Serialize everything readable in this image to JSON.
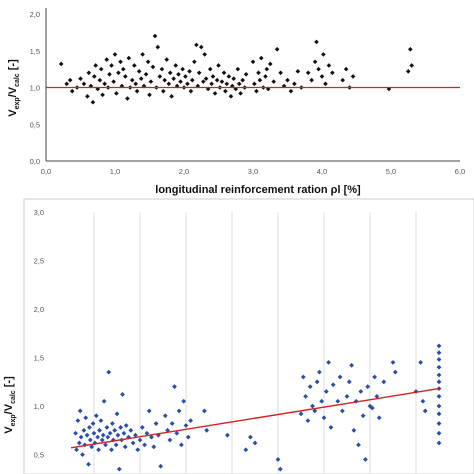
{
  "chart_data": [
    {
      "type": "scatter",
      "xlabel": "longitudinal reinforcement ration ρl [%]",
      "ylabel_main": "V",
      "ylabel_sub1": "exp",
      "ylabel_mid": "/V",
      "ylabel_sub2": "calc",
      "ylabel_tail": " [-]",
      "xlim": [
        0,
        6
      ],
      "ylim": [
        0,
        2
      ],
      "xticks": [
        "0,0",
        "1,0",
        "2,0",
        "3,0",
        "4,0",
        "5,0",
        "6,0"
      ],
      "yticks": [
        "0,0",
        "0,5",
        "1,0",
        "1,5",
        "2,0"
      ],
      "grid": false,
      "colors": {
        "points": "#111111",
        "reference": "#e02020"
      },
      "reference_line": {
        "x": [
          0,
          6
        ],
        "y": [
          1.0,
          1.0
        ]
      },
      "series": [
        {
          "points": [
            [
              0.22,
              1.32
            ],
            [
              0.3,
              1.05
            ],
            [
              0.35,
              1.1
            ],
            [
              0.38,
              0.95
            ],
            [
              0.45,
              1.0
            ],
            [
              0.5,
              1.12
            ],
            [
              0.55,
              1.05
            ],
            [
              0.6,
              0.88
            ],
            [
              0.62,
              1.2
            ],
            [
              0.65,
              1.02
            ],
            [
              0.68,
              0.8
            ],
            [
              0.7,
              1.15
            ],
            [
              0.72,
              1.3
            ],
            [
              0.75,
              0.98
            ],
            [
              0.78,
              1.1
            ],
            [
              0.8,
              1.25
            ],
            [
              0.82,
              0.9
            ],
            [
              0.85,
              1.05
            ],
            [
              0.88,
              1.38
            ],
            [
              0.9,
              1.0
            ],
            [
              0.92,
              1.18
            ],
            [
              0.95,
              1.3
            ],
            [
              0.98,
              1.08
            ],
            [
              1.0,
              1.45
            ],
            [
              1.02,
              0.92
            ],
            [
              1.05,
              1.2
            ],
            [
              1.08,
              1.35
            ],
            [
              1.1,
              1.02
            ],
            [
              1.12,
              1.25
            ],
            [
              1.15,
              1.15
            ],
            [
              1.18,
              0.85
            ],
            [
              1.2,
              1.4
            ],
            [
              1.22,
              1.0
            ],
            [
              1.25,
              1.1
            ],
            [
              1.28,
              1.3
            ],
            [
              1.3,
              1.05
            ],
            [
              1.32,
              0.95
            ],
            [
              1.35,
              1.22
            ],
            [
              1.38,
              1.12
            ],
            [
              1.4,
              1.45
            ],
            [
              1.42,
              1.02
            ],
            [
              1.45,
              1.18
            ],
            [
              1.48,
              1.35
            ],
            [
              1.5,
              0.9
            ],
            [
              1.52,
              1.08
            ],
            [
              1.55,
              1.28
            ],
            [
              1.58,
              1.7
            ],
            [
              1.6,
              1.0
            ],
            [
              1.62,
              1.55
            ],
            [
              1.65,
              1.15
            ],
            [
              1.68,
              1.25
            ],
            [
              1.7,
              0.95
            ],
            [
              1.72,
              1.1
            ],
            [
              1.75,
              1.38
            ],
            [
              1.78,
              1.05
            ],
            [
              1.8,
              1.2
            ],
            [
              1.82,
              0.88
            ],
            [
              1.85,
              1.12
            ],
            [
              1.88,
              1.3
            ],
            [
              1.9,
              1.02
            ],
            [
              1.92,
              1.18
            ],
            [
              1.95,
              1.08
            ],
            [
              1.98,
              1.25
            ],
            [
              2.0,
              1.0
            ],
            [
              2.02,
              1.15
            ],
            [
              2.05,
              1.05
            ],
            [
              2.08,
              1.22
            ],
            [
              2.1,
              0.95
            ],
            [
              2.12,
              1.1
            ],
            [
              2.15,
              1.35
            ],
            [
              2.18,
              1.58
            ],
            [
              2.2,
              1.02
            ],
            [
              2.22,
              1.2
            ],
            [
              2.25,
              1.55
            ],
            [
              2.28,
              1.08
            ],
            [
              2.3,
              1.45
            ],
            [
              2.32,
              1.12
            ],
            [
              2.35,
              0.98
            ],
            [
              2.38,
              1.25
            ],
            [
              2.4,
              1.05
            ],
            [
              2.42,
              1.15
            ],
            [
              2.45,
              0.92
            ],
            [
              2.48,
              1.1
            ],
            [
              2.5,
              1.3
            ],
            [
              2.52,
              1.0
            ],
            [
              2.55,
              1.08
            ],
            [
              2.58,
              1.2
            ],
            [
              2.6,
              0.95
            ],
            [
              2.62,
              1.05
            ],
            [
              2.65,
              1.15
            ],
            [
              2.68,
              0.88
            ],
            [
              2.7,
              1.02
            ],
            [
              2.72,
              1.12
            ],
            [
              2.75,
              0.98
            ],
            [
              2.78,
              1.25
            ],
            [
              2.8,
              1.05
            ],
            [
              2.82,
              0.92
            ],
            [
              2.85,
              1.1
            ],
            [
              2.88,
              1.0
            ],
            [
              2.9,
              1.18
            ],
            [
              3.0,
              1.35
            ],
            [
              3.02,
              1.05
            ],
            [
              3.05,
              0.95
            ],
            [
              3.08,
              1.2
            ],
            [
              3.1,
              1.1
            ],
            [
              3.12,
              1.4
            ],
            [
              3.15,
              1.0
            ],
            [
              3.18,
              1.15
            ],
            [
              3.2,
              1.25
            ],
            [
              3.22,
              0.98
            ],
            [
              3.25,
              1.32
            ],
            [
              3.3,
              1.08
            ],
            [
              3.35,
              1.52
            ],
            [
              3.4,
              1.2
            ],
            [
              3.45,
              1.02
            ],
            [
              3.5,
              1.1
            ],
            [
              3.55,
              0.95
            ],
            [
              3.6,
              1.05
            ],
            [
              3.65,
              1.22
            ],
            [
              3.7,
              1.0
            ],
            [
              3.8,
              1.2
            ],
            [
              3.85,
              1.1
            ],
            [
              3.9,
              1.35
            ],
            [
              3.92,
              1.62
            ],
            [
              3.95,
              1.25
            ],
            [
              4.0,
              1.15
            ],
            [
              4.02,
              1.45
            ],
            [
              4.05,
              1.05
            ],
            [
              4.1,
              1.3
            ],
            [
              4.15,
              1.2
            ],
            [
              4.3,
              1.1
            ],
            [
              4.35,
              1.25
            ],
            [
              4.4,
              1.0
            ],
            [
              4.45,
              1.15
            ],
            [
              4.97,
              0.98
            ],
            [
              5.25,
              1.22
            ],
            [
              5.28,
              1.52
            ],
            [
              5.3,
              1.3
            ]
          ]
        }
      ]
    },
    {
      "type": "scatter",
      "ylabel_main": "V",
      "ylabel_sub1": "exp",
      "ylabel_mid": "/V",
      "ylabel_sub2": "calc",
      "ylabel_tail": " [-]",
      "ylim": [
        0.3,
        3.0
      ],
      "yticks": [
        "0,5",
        "1,0",
        "1,5",
        "2,0",
        "2,5",
        "3,0"
      ],
      "grid": true,
      "colors": {
        "points": "#2a4fa8",
        "trend": "#d42020"
      },
      "trend_line": {
        "x": [
          0.5,
          8.5
        ],
        "y": [
          0.57,
          1.18
        ]
      },
      "series": [
        {
          "points": [
            [
              0.6,
              0.72
            ],
            [
              0.62,
              0.55
            ],
            [
              0.65,
              0.85
            ],
            [
              0.68,
              0.62
            ],
            [
              0.7,
              0.95
            ],
            [
              0.72,
              0.68
            ],
            [
              0.75,
              0.5
            ],
            [
              0.78,
              0.75
            ],
            [
              0.8,
              0.6
            ],
            [
              0.82,
              0.88
            ],
            [
              0.85,
              0.7
            ],
            [
              0.88,
              0.4
            ],
            [
              0.9,
              0.78
            ],
            [
              0.92,
              0.65
            ],
            [
              0.95,
              0.58
            ],
            [
              0.98,
              0.82
            ],
            [
              1.0,
              0.72
            ],
            [
              1.02,
              0.62
            ],
            [
              1.05,
              0.9
            ],
            [
              1.08,
              0.68
            ],
            [
              1.1,
              0.55
            ],
            [
              1.12,
              0.75
            ],
            [
              1.15,
              0.85
            ],
            [
              1.18,
              0.65
            ],
            [
              1.2,
              0.7
            ],
            [
              1.22,
              1.05
            ],
            [
              1.25,
              0.6
            ],
            [
              1.28,
              0.78
            ],
            [
              1.3,
              0.68
            ],
            [
              1.32,
              1.35
            ],
            [
              1.35,
              0.72
            ],
            [
              1.38,
              0.55
            ],
            [
              1.4,
              0.82
            ],
            [
              1.42,
              0.65
            ],
            [
              1.45,
              0.75
            ],
            [
              1.48,
              0.6
            ],
            [
              1.5,
              0.92
            ],
            [
              1.52,
              0.7
            ],
            [
              1.55,
              0.35
            ],
            [
              1.58,
              0.78
            ],
            [
              1.6,
              0.65
            ],
            [
              1.62,
              1.12
            ],
            [
              1.65,
              0.72
            ],
            [
              1.68,
              0.58
            ],
            [
              1.7,
              0.8
            ],
            [
              1.75,
              0.68
            ],
            [
              1.8,
              0.75
            ],
            [
              1.85,
              0.62
            ],
            [
              1.9,
              0.7
            ],
            [
              1.95,
              0.55
            ],
            [
              2.0,
              0.65
            ],
            [
              2.05,
              0.78
            ],
            [
              2.1,
              0.6
            ],
            [
              2.15,
              0.72
            ],
            [
              2.2,
              0.95
            ],
            [
              2.25,
              0.68
            ],
            [
              2.3,
              0.58
            ],
            [
              2.35,
              0.82
            ],
            [
              2.4,
              0.7
            ],
            [
              2.45,
              0.38
            ],
            [
              2.55,
              0.9
            ],
            [
              2.6,
              0.75
            ],
            [
              2.65,
              0.65
            ],
            [
              2.7,
              0.82
            ],
            [
              2.75,
              1.2
            ],
            [
              2.8,
              0.72
            ],
            [
              2.85,
              0.95
            ],
            [
              2.9,
              0.6
            ],
            [
              2.95,
              1.05
            ],
            [
              3.0,
              0.8
            ],
            [
              3.05,
              0.68
            ],
            [
              3.1,
              0.85
            ],
            [
              3.4,
              0.95
            ],
            [
              3.45,
              0.75
            ],
            [
              3.9,
              0.7
            ],
            [
              4.3,
              0.55
            ],
            [
              4.4,
              0.68
            ],
            [
              4.5,
              0.62
            ],
            [
              5.0,
              0.45
            ],
            [
              5.05,
              0.35
            ],
            [
              5.5,
              0.92
            ],
            [
              5.55,
              1.3
            ],
            [
              5.6,
              1.1
            ],
            [
              5.65,
              0.85
            ],
            [
              5.7,
              1.2
            ],
            [
              5.75,
              1.0
            ],
            [
              5.8,
              0.95
            ],
            [
              5.85,
              1.25
            ],
            [
              5.9,
              1.35
            ],
            [
              5.95,
              1.05
            ],
            [
              6.0,
              0.88
            ],
            [
              6.05,
              1.15
            ],
            [
              6.1,
              1.45
            ],
            [
              6.15,
              0.78
            ],
            [
              6.2,
              1.22
            ],
            [
              6.3,
              1.05
            ],
            [
              6.35,
              1.3
            ],
            [
              6.4,
              0.95
            ],
            [
              6.5,
              1.1
            ],
            [
              6.55,
              1.25
            ],
            [
              6.6,
              1.42
            ],
            [
              6.65,
              0.75
            ],
            [
              6.7,
              1.05
            ],
            [
              6.75,
              0.6
            ],
            [
              6.8,
              1.15
            ],
            [
              6.85,
              0.9
            ],
            [
              6.9,
              0.45
            ],
            [
              6.95,
              1.2
            ],
            [
              7.0,
              1.0
            ],
            [
              7.05,
              0.98
            ],
            [
              7.1,
              1.3
            ],
            [
              7.15,
              1.1
            ],
            [
              7.2,
              0.88
            ],
            [
              7.3,
              1.25
            ],
            [
              7.5,
              1.45
            ],
            [
              7.55,
              1.35
            ],
            [
              8.0,
              1.15
            ],
            [
              8.1,
              1.45
            ],
            [
              8.15,
              1.05
            ],
            [
              8.2,
              0.95
            ],
            [
              8.5,
              1.62
            ],
            [
              8.5,
              1.55
            ],
            [
              8.5,
              1.48
            ],
            [
              8.5,
              1.4
            ],
            [
              8.5,
              1.32
            ],
            [
              8.5,
              1.25
            ],
            [
              8.5,
              1.18
            ],
            [
              8.5,
              1.1
            ],
            [
              8.5,
              1.0
            ],
            [
              8.5,
              0.92
            ],
            [
              8.5,
              0.82
            ],
            [
              8.5,
              0.72
            ],
            [
              8.5,
              0.62
            ]
          ]
        }
      ]
    }
  ]
}
